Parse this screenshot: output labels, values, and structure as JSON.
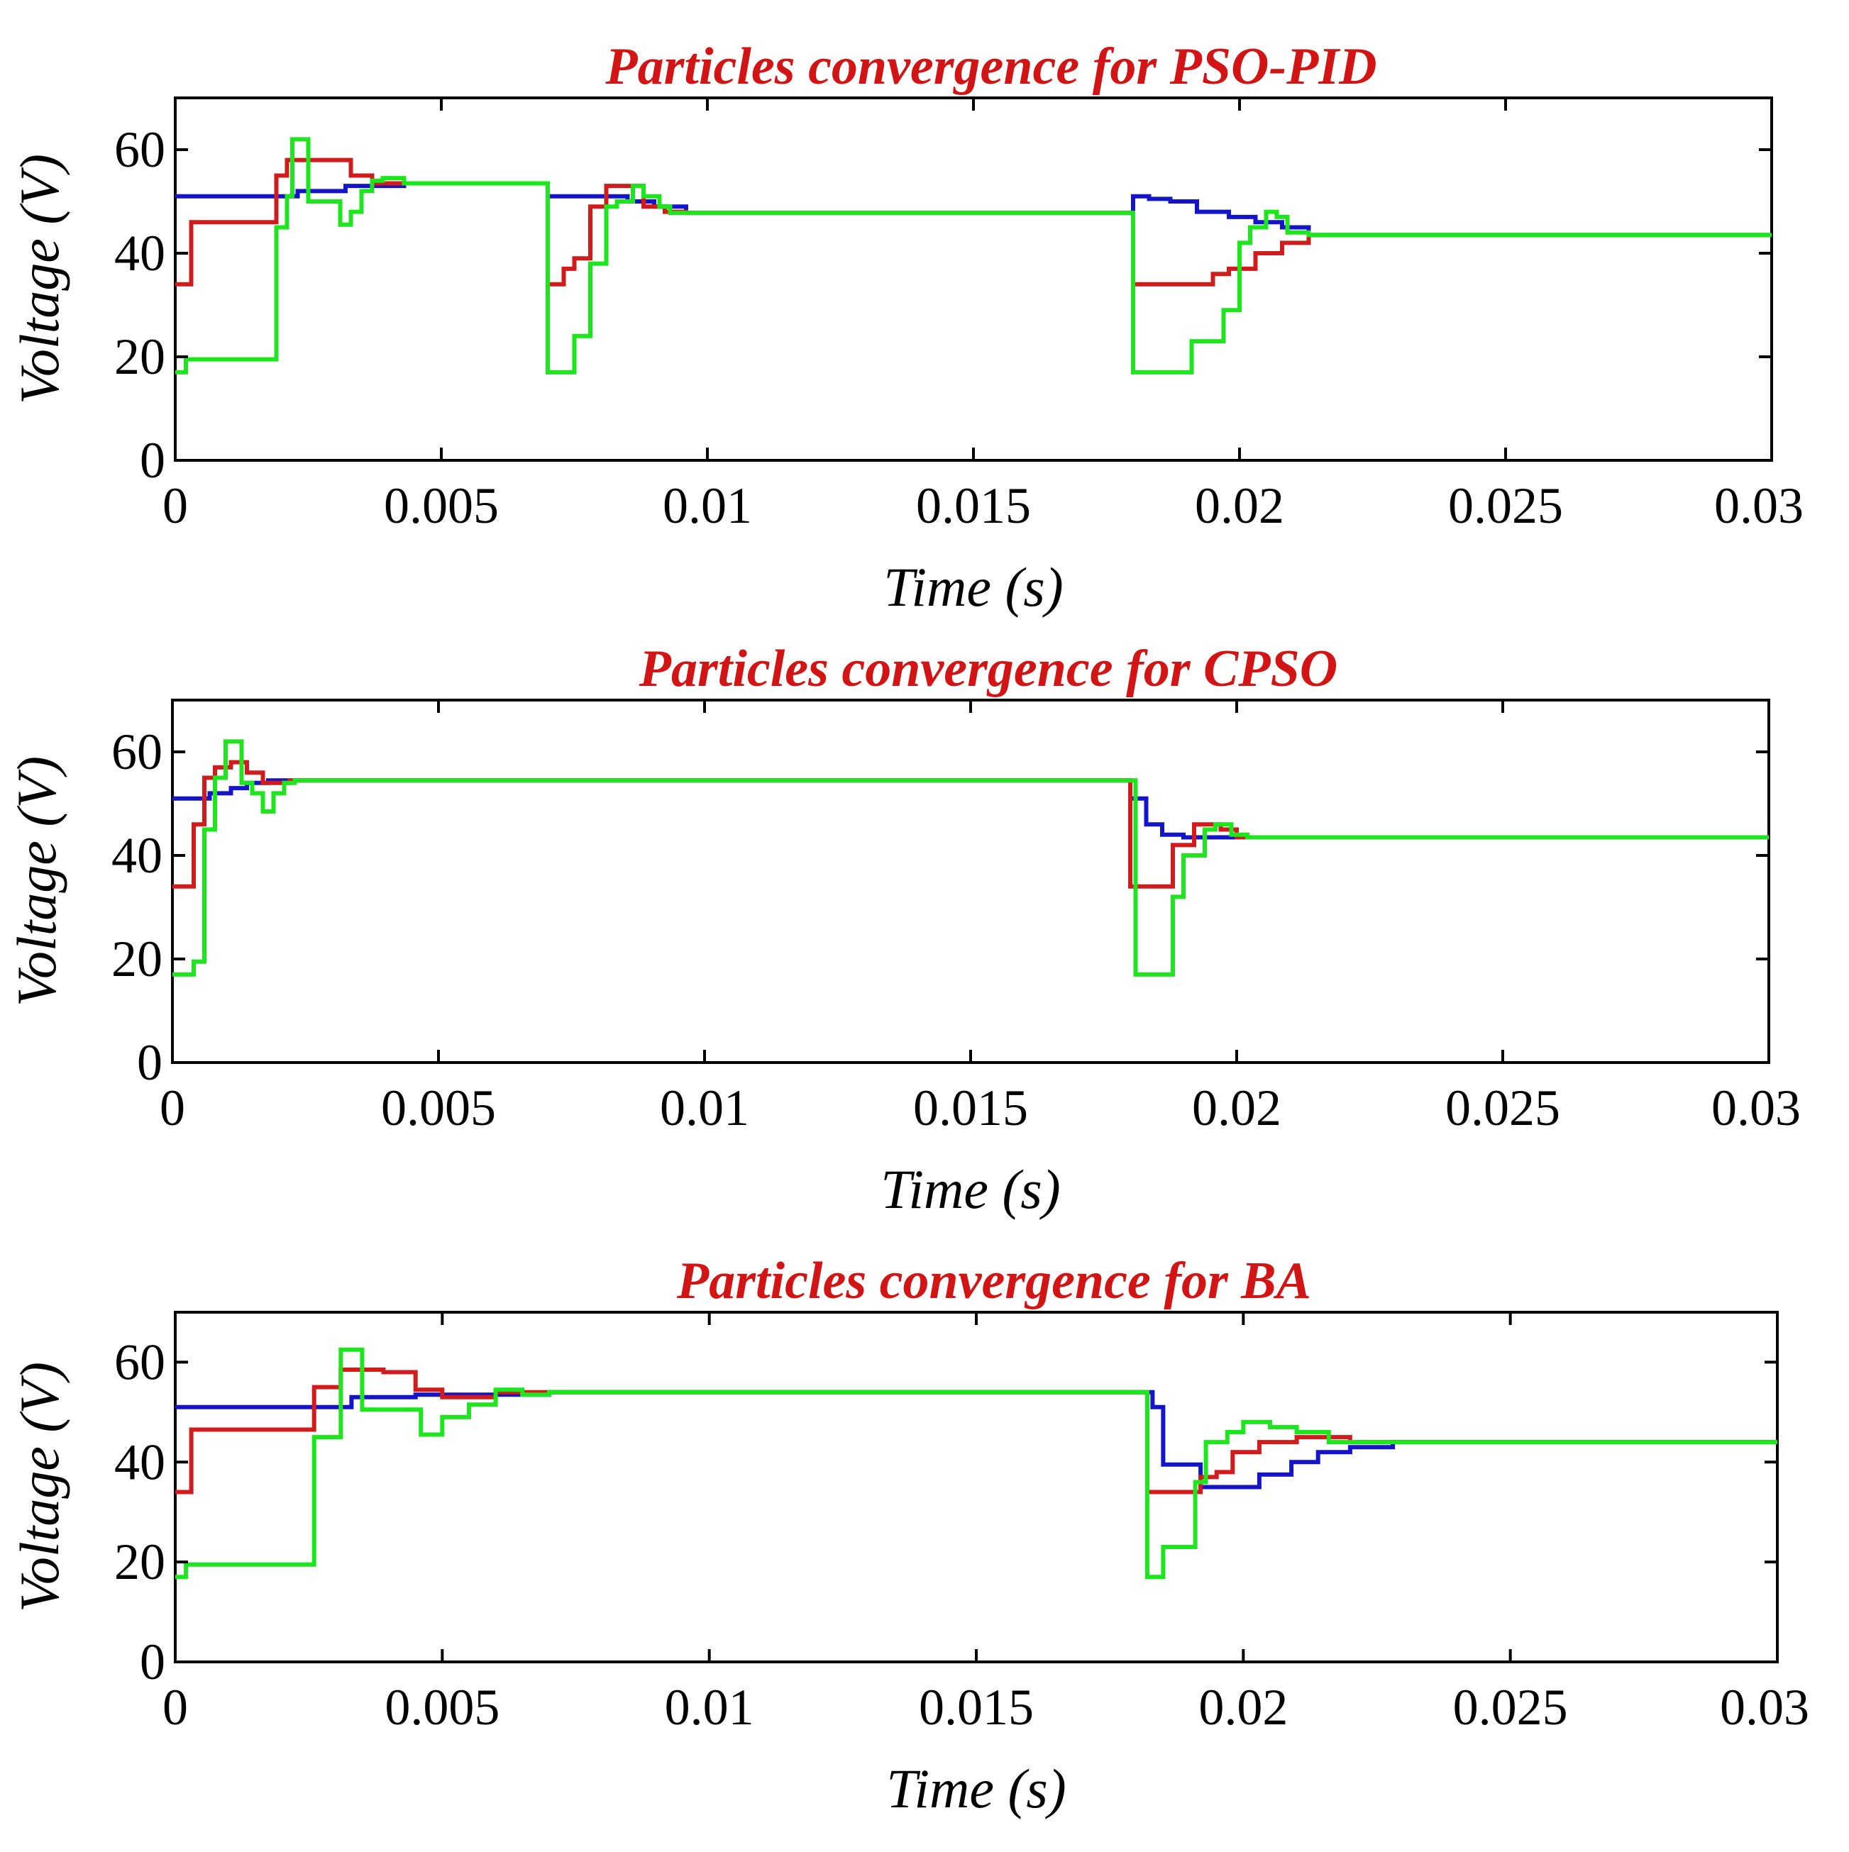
{
  "colors": {
    "blue": "#1414c8",
    "red": "#d01c1c",
    "green": "#1ee61e",
    "title": "#d21414",
    "axis": "#000000"
  },
  "chart_data": [
    {
      "type": "line",
      "title": "Particles convergence for PSO-PID",
      "xlabel": "Time (s)",
      "ylabel": "Voltage (V)",
      "xlim": [
        0,
        0.03
      ],
      "ylim": [
        0,
        70
      ],
      "xticks": [
        0,
        0.005,
        0.01,
        0.015,
        0.02,
        0.025,
        0.03
      ],
      "xtick_labels": [
        "0",
        "0.005",
        "0.01",
        "0.015",
        "0.02",
        "0.025",
        "0.03"
      ],
      "yticks": [
        0,
        20,
        40,
        60
      ],
      "ytick_labels": [
        "0",
        "20",
        "40",
        "60"
      ],
      "series": [
        {
          "name": "blue",
          "color": "#1414c8",
          "x": [
            0,
            0.0023,
            0.0032,
            0.0043,
            0.007,
            0.0075,
            0.0085,
            0.009,
            0.0096,
            0.018,
            0.0183,
            0.0187,
            0.0192,
            0.0198,
            0.0203,
            0.0208,
            0.0213,
            0.03
          ],
          "y": [
            51,
            52,
            53,
            53.5,
            51,
            51,
            50,
            49,
            47.8,
            51,
            50.5,
            50,
            48,
            47,
            46,
            45,
            43.5,
            43.5
          ]
        },
        {
          "name": "red",
          "color": "#d01c1c",
          "x": [
            0,
            0.0003,
            0.0019,
            0.0021,
            0.0028,
            0.0033,
            0.0037,
            0.0043,
            0.007,
            0.0073,
            0.0075,
            0.0078,
            0.0081,
            0.0088,
            0.0092,
            0.0096,
            0.018,
            0.0183,
            0.0191,
            0.0195,
            0.0198,
            0.0203,
            0.0208,
            0.0213,
            0.03
          ],
          "y": [
            34,
            46,
            55,
            58,
            58,
            55,
            53.5,
            53.5,
            34,
            37,
            39,
            49,
            53,
            49,
            48,
            47.8,
            34,
            34,
            34,
            36,
            37,
            40,
            42,
            43.5,
            43.5
          ]
        },
        {
          "name": "green",
          "color": "#1ee61e",
          "x": [
            0,
            0.0002,
            0.0019,
            0.0021,
            0.0022,
            0.0025,
            0.0027,
            0.0031,
            0.0033,
            0.0035,
            0.0037,
            0.0039,
            0.0043,
            0.007,
            0.0073,
            0.0075,
            0.0078,
            0.0081,
            0.0083,
            0.0086,
            0.0088,
            0.0091,
            0.0093,
            0.0096,
            0.018,
            0.0183,
            0.0186,
            0.0191,
            0.0193,
            0.0197,
            0.02,
            0.0202,
            0.0205,
            0.0207,
            0.0209,
            0.0213,
            0.03
          ],
          "y": [
            17,
            19.5,
            45,
            51,
            62,
            50,
            50,
            45.5,
            48,
            52,
            54,
            54.5,
            53.5,
            17,
            17,
            24,
            38,
            49,
            50,
            53,
            51,
            49,
            47.8,
            47.8,
            17,
            17,
            17,
            23,
            23,
            29,
            42,
            45,
            48,
            47,
            44,
            43.5,
            43.5
          ]
        }
      ]
    },
    {
      "type": "line",
      "title": "Particles convergence for CPSO",
      "xlabel": "Time (s)",
      "ylabel": "Voltage (V)",
      "xlim": [
        0,
        0.03
      ],
      "ylim": [
        0,
        70
      ],
      "xticks": [
        0,
        0.005,
        0.01,
        0.015,
        0.02,
        0.025,
        0.03
      ],
      "xtick_labels": [
        "0",
        "0.005",
        "0.01",
        "0.015",
        "0.02",
        "0.025",
        "0.03"
      ],
      "yticks": [
        0,
        20,
        40,
        60
      ],
      "ytick_labels": [
        "0",
        "20",
        "40",
        "60"
      ],
      "series": [
        {
          "name": "blue",
          "color": "#1414c8",
          "x": [
            0,
            0.0007,
            0.0011,
            0.0014,
            0.0018,
            0.0022,
            0.018,
            0.0183,
            0.0186,
            0.019,
            0.0195,
            0.02,
            0.03
          ],
          "y": [
            51,
            52,
            53,
            54,
            54.5,
            54.5,
            51,
            46,
            44,
            43.5,
            43.5,
            43.5,
            43.5
          ]
        },
        {
          "name": "red",
          "color": "#d01c1c",
          "x": [
            0,
            0.0004,
            0.0006,
            0.0008,
            0.0011,
            0.0014,
            0.0017,
            0.0019,
            0.0022,
            0.018,
            0.0184,
            0.0188,
            0.0192,
            0.0197,
            0.02,
            0.03
          ],
          "y": [
            34,
            46,
            55,
            57,
            58,
            56,
            54,
            54,
            54.5,
            34,
            34,
            42,
            46,
            45,
            43.5,
            43.5
          ]
        },
        {
          "name": "green",
          "color": "#1ee61e",
          "x": [
            0,
            0.0004,
            0.0006,
            0.0008,
            0.001,
            0.0013,
            0.0015,
            0.0017,
            0.0019,
            0.0021,
            0.0023,
            0.018,
            0.0181,
            0.0186,
            0.0188,
            0.019,
            0.0194,
            0.0196,
            0.0199,
            0.0202,
            0.03
          ],
          "y": [
            17,
            19.5,
            45,
            55,
            62,
            54,
            52,
            48.5,
            52,
            54,
            54.5,
            54.5,
            17,
            17,
            32,
            40,
            45,
            46,
            44,
            43.5,
            43.5
          ]
        }
      ]
    },
    {
      "type": "line",
      "title": "Particles convergence for BA",
      "xlabel": "Time (s)",
      "ylabel": "Voltage (V)",
      "xlim": [
        0,
        0.03
      ],
      "ylim": [
        0,
        70
      ],
      "xticks": [
        0,
        0.005,
        0.01,
        0.015,
        0.02,
        0.025,
        0.03
      ],
      "xtick_labels": [
        "0",
        "0.005",
        "0.01",
        "0.015",
        "0.02",
        "0.025",
        "0.03"
      ],
      "yticks": [
        0,
        20,
        40,
        60
      ],
      "ytick_labels": [
        "0",
        "20",
        "40",
        "60"
      ],
      "series": [
        {
          "name": "blue",
          "color": "#1414c8",
          "x": [
            0,
            0.0033,
            0.0045,
            0.007,
            0.018,
            0.0183,
            0.0185,
            0.019,
            0.0192,
            0.0197,
            0.0203,
            0.0209,
            0.0214,
            0.022,
            0.0228,
            0.0234,
            0.03
          ],
          "y": [
            51,
            53,
            53.5,
            54,
            54,
            51,
            39.5,
            39.5,
            35,
            35,
            37.5,
            40,
            42,
            43,
            44,
            44,
            44
          ]
        },
        {
          "name": "red",
          "color": "#d01c1c",
          "x": [
            0,
            0.0003,
            0.0026,
            0.0031,
            0.0039,
            0.0045,
            0.005,
            0.0055,
            0.006,
            0.007,
            0.018,
            0.0182,
            0.0192,
            0.0195,
            0.0198,
            0.0203,
            0.021,
            0.0216,
            0.022,
            0.0238,
            0.03
          ],
          "y": [
            34,
            46.5,
            55,
            58.5,
            58,
            54.5,
            53,
            53,
            54,
            54,
            54,
            34,
            37,
            38,
            42,
            44,
            45,
            45,
            44,
            44,
            44
          ]
        },
        {
          "name": "green",
          "color": "#1ee61e",
          "x": [
            0,
            0.0002,
            0.0026,
            0.0031,
            0.0035,
            0.0038,
            0.0046,
            0.005,
            0.0055,
            0.006,
            0.0065,
            0.007,
            0.018,
            0.0182,
            0.0185,
            0.0191,
            0.0193,
            0.0197,
            0.02,
            0.0205,
            0.021,
            0.0216,
            0.0222,
            0.03
          ],
          "y": [
            17,
            19.5,
            45,
            62.5,
            50.5,
            50.5,
            45.5,
            49,
            51.5,
            54.5,
            53.5,
            54,
            54,
            17,
            23,
            36,
            44,
            46,
            48,
            47,
            46,
            44,
            44,
            44
          ]
        }
      ]
    }
  ]
}
